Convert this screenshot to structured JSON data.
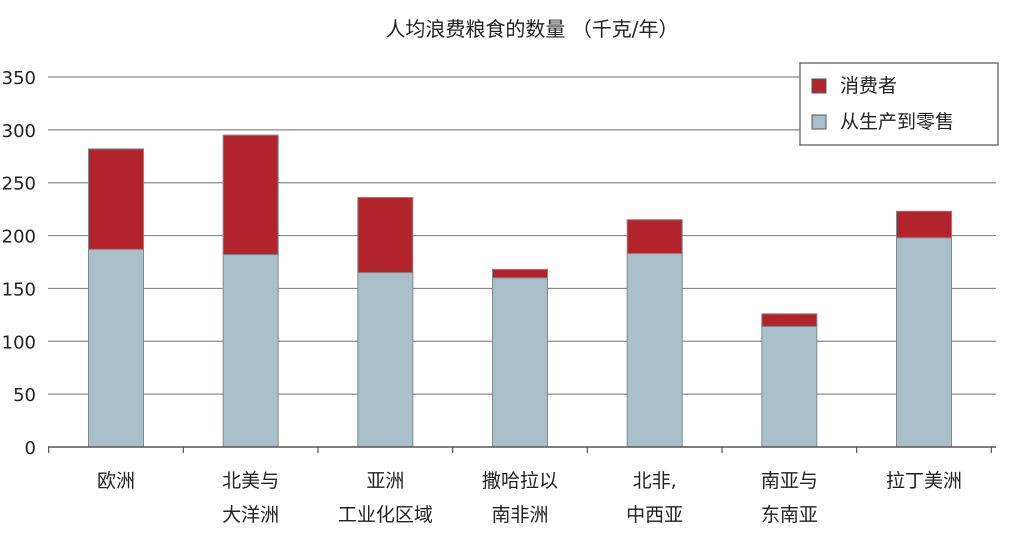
{
  "chart_data": {
    "type": "bar",
    "stacked": true,
    "title": "人均浪费粮食的数量 （千克/年）",
    "xlabel": "",
    "ylabel": "",
    "ylim": [
      0,
      350
    ],
    "yticks": [
      0,
      50,
      100,
      150,
      200,
      250,
      300,
      350
    ],
    "grid": true,
    "legend_position": "top-right",
    "categories": [
      [
        "欧洲"
      ],
      [
        "北美与",
        "大洋洲"
      ],
      [
        "亚洲",
        "工业化区域"
      ],
      [
        "撒哈拉以",
        "南非洲"
      ],
      [
        "北非,",
        "中西亚"
      ],
      [
        "南亚与",
        "东南亚"
      ],
      [
        "拉丁美洲"
      ]
    ],
    "series": [
      {
        "name": "从生产到零售",
        "color": "#a9bfca",
        "values": [
          187,
          182,
          165,
          160,
          183,
          114,
          198
        ]
      },
      {
        "name": "消费者",
        "color": "#b2232b",
        "values": [
          95,
          113,
          71,
          8,
          32,
          12,
          25
        ]
      }
    ],
    "legend_order": [
      "消费者",
      "从生产到零售"
    ]
  }
}
